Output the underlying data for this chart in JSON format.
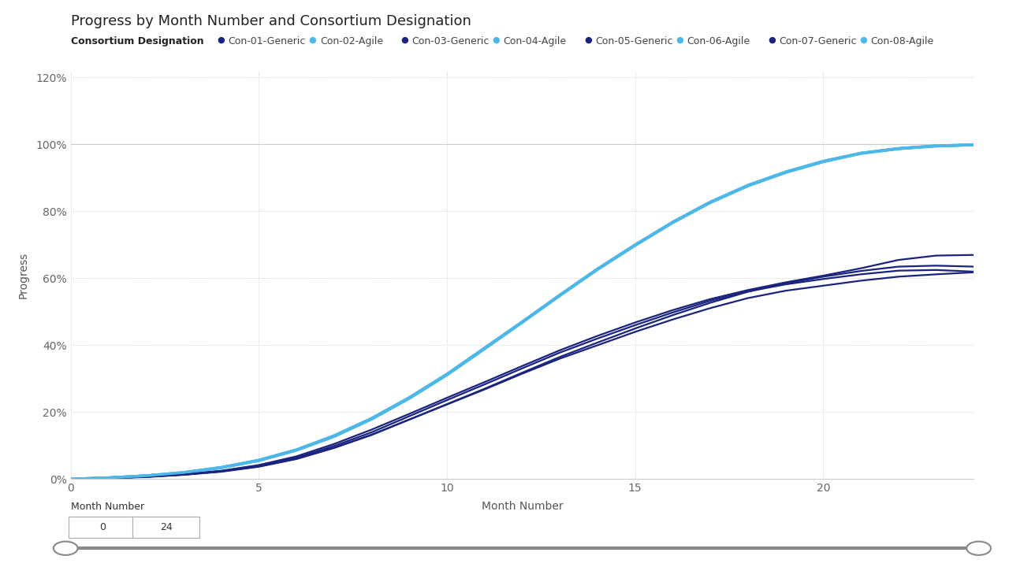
{
  "title": "Progress by Month Number and Consortium Designation",
  "xlabel": "Month Number",
  "ylabel": "Progress",
  "legend_title": "Consortium Designation",
  "xlim": [
    0,
    24
  ],
  "ylim": [
    0,
    1.22
  ],
  "xticks": [
    0,
    5,
    10,
    15,
    20
  ],
  "yticks": [
    0,
    0.2,
    0.4,
    0.6,
    0.8,
    1.0,
    1.2
  ],
  "ytick_labels": [
    "0%",
    "20%",
    "40%",
    "60%",
    "80%",
    "100%",
    "120%"
  ],
  "background_color": "#ffffff",
  "grid_color": "#cccccc",
  "agile_color": "#4db8e8",
  "generic_color": "#1a237e",
  "series": [
    {
      "name": "Con-01-Generic",
      "type": "Generic",
      "months": [
        0,
        1,
        2,
        3,
        4,
        5,
        6,
        7,
        8,
        9,
        10,
        11,
        12,
        13,
        14,
        15,
        16,
        17,
        18,
        19,
        20,
        21,
        22,
        23,
        24
      ],
      "progress": [
        0,
        0.003,
        0.007,
        0.015,
        0.025,
        0.042,
        0.068,
        0.105,
        0.148,
        0.195,
        0.243,
        0.29,
        0.338,
        0.385,
        0.428,
        0.468,
        0.505,
        0.538,
        0.565,
        0.588,
        0.608,
        0.63,
        0.655,
        0.668,
        0.67
      ]
    },
    {
      "name": "Con-02-Agile",
      "type": "Agile",
      "months": [
        0,
        1,
        2,
        3,
        4,
        5,
        6,
        7,
        8,
        9,
        10,
        11,
        12,
        13,
        14,
        15,
        16,
        17,
        18,
        19,
        20,
        21,
        22,
        23,
        24
      ],
      "progress": [
        0,
        0.004,
        0.01,
        0.02,
        0.035,
        0.057,
        0.088,
        0.13,
        0.182,
        0.244,
        0.314,
        0.392,
        0.47,
        0.55,
        0.628,
        0.7,
        0.768,
        0.828,
        0.878,
        0.918,
        0.95,
        0.974,
        0.988,
        0.996,
        0.999
      ]
    },
    {
      "name": "Con-03-Generic",
      "type": "Generic",
      "months": [
        0,
        1,
        2,
        3,
        4,
        5,
        6,
        7,
        8,
        9,
        10,
        11,
        12,
        13,
        14,
        15,
        16,
        17,
        18,
        19,
        20,
        21,
        22,
        23,
        24
      ],
      "progress": [
        0,
        0.003,
        0.007,
        0.013,
        0.023,
        0.038,
        0.061,
        0.094,
        0.133,
        0.178,
        0.223,
        0.268,
        0.315,
        0.36,
        0.4,
        0.44,
        0.477,
        0.511,
        0.541,
        0.563,
        0.578,
        0.593,
        0.605,
        0.612,
        0.618
      ]
    },
    {
      "name": "Con-04-Agile",
      "type": "Agile",
      "months": [
        0,
        1,
        2,
        3,
        4,
        5,
        6,
        7,
        8,
        9,
        10,
        11,
        12,
        13,
        14,
        15,
        16,
        17,
        18,
        19,
        20,
        21,
        22,
        23,
        24
      ],
      "progress": [
        0,
        0.004,
        0.01,
        0.019,
        0.034,
        0.055,
        0.086,
        0.127,
        0.179,
        0.241,
        0.311,
        0.389,
        0.468,
        0.548,
        0.626,
        0.698,
        0.766,
        0.826,
        0.876,
        0.916,
        0.948,
        0.973,
        0.987,
        0.995,
        0.999
      ]
    },
    {
      "name": "Con-05-Generic",
      "type": "Generic",
      "months": [
        0,
        1,
        2,
        3,
        4,
        5,
        6,
        7,
        8,
        9,
        10,
        11,
        12,
        13,
        14,
        15,
        16,
        17,
        18,
        19,
        20,
        21,
        22,
        23,
        24
      ],
      "progress": [
        0,
        0.003,
        0.006,
        0.013,
        0.022,
        0.037,
        0.06,
        0.093,
        0.132,
        0.178,
        0.224,
        0.27,
        0.318,
        0.365,
        0.408,
        0.45,
        0.49,
        0.527,
        0.56,
        0.585,
        0.605,
        0.622,
        0.635,
        0.638,
        0.635
      ]
    },
    {
      "name": "Con-06-Agile",
      "type": "Agile",
      "months": [
        0,
        1,
        2,
        3,
        4,
        5,
        6,
        7,
        8,
        9,
        10,
        11,
        12,
        13,
        14,
        15,
        16,
        17,
        18,
        19,
        20,
        21,
        22,
        23,
        24
      ],
      "progress": [
        0,
        0.004,
        0.01,
        0.019,
        0.034,
        0.056,
        0.087,
        0.128,
        0.18,
        0.242,
        0.312,
        0.39,
        0.469,
        0.549,
        0.627,
        0.699,
        0.767,
        0.827,
        0.877,
        0.917,
        0.949,
        0.974,
        0.988,
        0.996,
        0.999
      ]
    },
    {
      "name": "Con-07-Generic",
      "type": "Generic",
      "months": [
        0,
        1,
        2,
        3,
        4,
        5,
        6,
        7,
        8,
        9,
        10,
        11,
        12,
        13,
        14,
        15,
        16,
        17,
        18,
        19,
        20,
        21,
        22,
        23,
        24
      ],
      "progress": [
        0,
        0.003,
        0.007,
        0.014,
        0.024,
        0.04,
        0.064,
        0.099,
        0.14,
        0.188,
        0.236,
        0.283,
        0.331,
        0.378,
        0.42,
        0.46,
        0.498,
        0.533,
        0.561,
        0.582,
        0.598,
        0.612,
        0.623,
        0.625,
        0.62
      ]
    },
    {
      "name": "Con-08-Agile",
      "type": "Agile",
      "months": [
        0,
        1,
        2,
        3,
        4,
        5,
        6,
        7,
        8,
        9,
        10,
        11,
        12,
        13,
        14,
        15,
        16,
        17,
        18,
        19,
        20,
        21,
        22,
        23,
        24
      ],
      "progress": [
        0,
        0.004,
        0.01,
        0.02,
        0.035,
        0.056,
        0.087,
        0.129,
        0.181,
        0.243,
        0.313,
        0.391,
        0.47,
        0.55,
        0.628,
        0.7,
        0.768,
        0.828,
        0.878,
        0.918,
        0.95,
        0.974,
        0.988,
        0.996,
        0.999
      ]
    }
  ],
  "slider_label": "Month Number",
  "slider_min": "0",
  "slider_max": "24",
  "title_fontsize": 13,
  "label_fontsize": 10,
  "tick_fontsize": 10,
  "legend_fontsize": 9,
  "legend_title_fontsize": 9
}
